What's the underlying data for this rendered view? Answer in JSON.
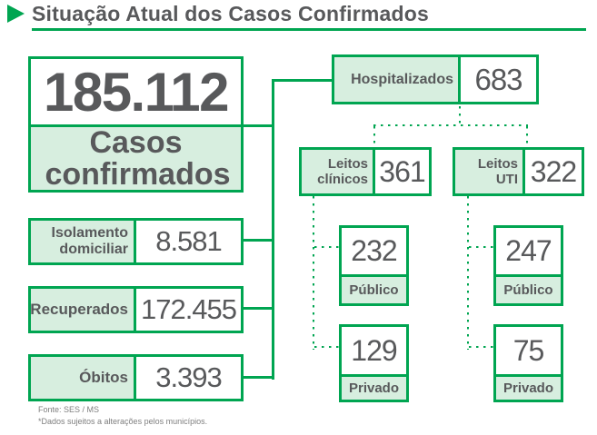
{
  "header": {
    "title": "Situação Atual dos Casos Confirmados"
  },
  "total": {
    "value": "185.112",
    "label": "Casos confirmados"
  },
  "rows": [
    {
      "label": "Isolamento domiciliar",
      "value": "8.581"
    },
    {
      "label": "Recuperados",
      "value": "172.455"
    },
    {
      "label": "Óbitos",
      "value": "3.393"
    }
  ],
  "hospitalized": {
    "label": "Hospitalizados",
    "value": "683"
  },
  "beds": {
    "clinical": {
      "label": "Leitos clínicos",
      "value": "361",
      "public": {
        "label": "Público",
        "value": "232"
      },
      "private": {
        "label": "Privado",
        "value": "129"
      }
    },
    "icu": {
      "label": "Leitos UTI",
      "value": "322",
      "public": {
        "label": "Público",
        "value": "247"
      },
      "private": {
        "label": "Privado",
        "value": "75"
      }
    }
  },
  "footer": {
    "source": "Fonte: SES / MS",
    "note": "*Dados sujeitos a alterações pelos municípios."
  },
  "colors": {
    "accent_green": "#00A551",
    "fill_light_green": "#D7EEDF",
    "text_gray": "#58595B",
    "footer_gray": "#7F7F7F"
  }
}
